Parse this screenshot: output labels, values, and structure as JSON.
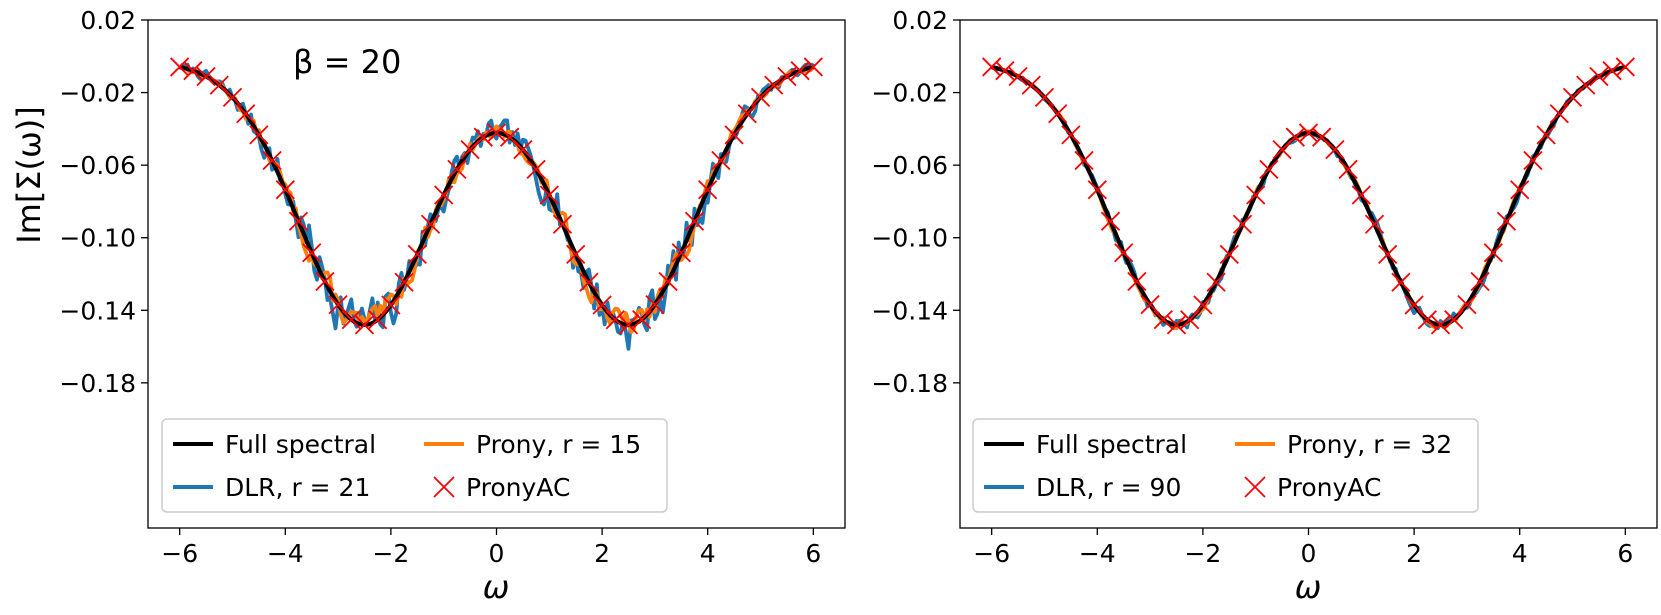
{
  "chart_data": [
    {
      "type": "line",
      "annotation": "β = 20",
      "xlabel": "ω",
      "ylabel": "Im[Σ(ω)]",
      "xlim": [
        -6.6,
        6.6
      ],
      "ylim": [
        -0.26,
        0.02
      ],
      "xticks": [
        -6,
        -4,
        -2,
        0,
        2,
        4,
        6
      ],
      "xtick_labels": [
        "−6",
        "−4",
        "−2",
        "0",
        "2",
        "4",
        "6"
      ],
      "yticks": [
        0.02,
        -0.02,
        -0.06,
        -0.1,
        -0.14,
        -0.18
      ],
      "ytick_labels": [
        "0.02",
        "−0.02",
        "−0.06",
        "−0.10",
        "−0.14",
        "−0.18"
      ],
      "grid": false,
      "legend_position": "lower-left",
      "legend": {
        "full": "Full spectral",
        "dlr": "DLR, r = 21",
        "prony": "Prony, r = 15",
        "pronyac": "PronyAC"
      },
      "model": {
        "amplitude": -0.145,
        "centers": [
          -2.5,
          2.5
        ],
        "width": 1.25,
        "offset": -0.003
      },
      "noise": {
        "dlr": 0.0085,
        "prony": 0.005,
        "dlr_seed": 7,
        "prony_seed": 13
      },
      "series": [
        {
          "name": "Full spectral",
          "color": "#000000",
          "style": "line"
        },
        {
          "name": "DLR, r = 21",
          "color": "#1f77b4",
          "style": "line"
        },
        {
          "name": "Prony, r = 15",
          "color": "#ff7f0e",
          "style": "line"
        },
        {
          "name": "PronyAC",
          "color": "#ff0000",
          "style": "x-markers",
          "x": [
            -6.0,
            -5.75,
            -5.5,
            -5.25,
            -5.0,
            -4.75,
            -4.5,
            -4.25,
            -4.0,
            -3.75,
            -3.5,
            -3.25,
            -3.0,
            -2.75,
            -2.5,
            -2.25,
            -2.0,
            -1.75,
            -1.5,
            -1.25,
            -1.0,
            -0.75,
            -0.5,
            -0.25,
            0.0,
            0.25,
            0.5,
            0.75,
            1.0,
            1.25,
            1.5,
            1.75,
            2.0,
            2.25,
            2.5,
            2.75,
            3.0,
            3.25,
            3.5,
            3.75,
            4.0,
            4.25,
            4.5,
            4.75,
            5.0,
            5.25,
            5.5,
            5.75,
            6.0
          ]
        }
      ]
    },
    {
      "type": "line",
      "xlabel": "ω",
      "ylabel": "",
      "xlim": [
        -6.6,
        6.6
      ],
      "ylim": [
        -0.26,
        0.02
      ],
      "xticks": [
        -6,
        -4,
        -2,
        0,
        2,
        4,
        6
      ],
      "xtick_labels": [
        "−6",
        "−4",
        "−2",
        "0",
        "2",
        "4",
        "6"
      ],
      "yticks": [
        0.02,
        -0.02,
        -0.06,
        -0.1,
        -0.14,
        -0.18
      ],
      "ytick_labels": [
        "0.02",
        "−0.02",
        "−0.06",
        "−0.10",
        "−0.14",
        "−0.18"
      ],
      "grid": false,
      "legend_position": "lower-left",
      "legend": {
        "full": "Full spectral",
        "dlr": "DLR, r = 90",
        "prony": "Prony, r = 32",
        "pronyac": "PronyAC"
      },
      "model": {
        "amplitude": -0.145,
        "centers": [
          -2.5,
          2.5
        ],
        "width": 1.25,
        "offset": -0.003
      },
      "noise": {
        "dlr": 0.0022,
        "prony": 0.0015,
        "dlr_seed": 21,
        "prony_seed": 33
      },
      "series": [
        {
          "name": "Full spectral",
          "color": "#000000",
          "style": "line"
        },
        {
          "name": "DLR, r = 90",
          "color": "#1f77b4",
          "style": "line"
        },
        {
          "name": "Prony, r = 32",
          "color": "#ff7f0e",
          "style": "line"
        },
        {
          "name": "PronyAC",
          "color": "#ff0000",
          "style": "x-markers",
          "x": [
            -6.0,
            -5.75,
            -5.5,
            -5.25,
            -5.0,
            -4.75,
            -4.5,
            -4.25,
            -4.0,
            -3.75,
            -3.5,
            -3.25,
            -3.0,
            -2.75,
            -2.5,
            -2.25,
            -2.0,
            -1.75,
            -1.5,
            -1.25,
            -1.0,
            -0.75,
            -0.5,
            -0.25,
            0.0,
            0.25,
            0.5,
            0.75,
            1.0,
            1.25,
            1.5,
            1.75,
            2.0,
            2.25,
            2.5,
            2.75,
            3.0,
            3.25,
            3.5,
            3.75,
            4.0,
            4.25,
            4.5,
            4.75,
            5.0,
            5.25,
            5.5,
            5.75,
            6.0
          ]
        }
      ]
    }
  ]
}
